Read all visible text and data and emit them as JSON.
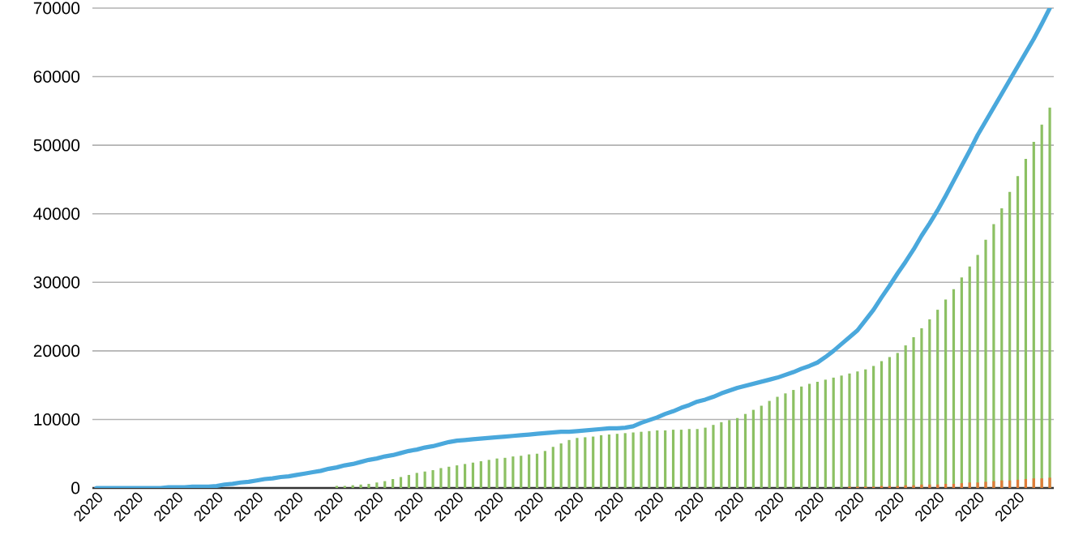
{
  "chart_data": {
    "type": "bar",
    "categories": [
      "2020",
      null,
      null,
      null,
      null,
      "2020",
      null,
      null,
      null,
      null,
      "2020",
      null,
      null,
      null,
      null,
      "2020",
      null,
      null,
      null,
      null,
      "2020",
      null,
      null,
      null,
      null,
      "2020",
      null,
      null,
      null,
      null,
      "2020",
      null,
      null,
      null,
      null,
      "2020",
      null,
      null,
      null,
      null,
      "2020",
      null,
      null,
      null,
      null,
      "2020",
      null,
      null,
      null,
      null,
      "2020",
      null,
      null,
      null,
      null,
      "2020",
      null,
      null,
      null,
      null,
      "2020",
      null,
      null,
      null,
      null,
      "2020",
      null,
      null,
      null,
      null,
      "2020",
      null,
      null,
      null,
      null,
      "2020",
      null,
      null,
      null,
      null,
      "2020",
      null,
      null,
      null,
      null,
      "2020",
      null,
      null,
      null,
      null,
      "2020",
      null,
      null,
      null,
      null,
      "2020",
      null,
      null,
      null,
      null,
      "2020",
      null,
      null,
      null,
      null,
      "2020",
      null,
      null,
      null,
      null,
      "2020",
      null,
      null,
      null,
      null,
      "2020",
      null,
      null,
      null,
      null
    ],
    "series": [
      {
        "color": "#8cc063",
        "values": [
          null,
          null,
          null,
          null,
          null,
          null,
          null,
          null,
          null,
          null,
          null,
          null,
          null,
          null,
          null,
          null,
          null,
          null,
          null,
          null,
          null,
          null,
          null,
          null,
          null,
          null,
          null,
          null,
          null,
          null,
          300,
          300,
          400,
          500,
          600,
          800,
          1000,
          1300,
          1600,
          1900,
          2200,
          2400,
          2600,
          2900,
          3100,
          3300,
          3500,
          3700,
          3900,
          4100,
          4300,
          4400,
          4600,
          4700,
          4900,
          5000,
          5400,
          6000,
          6500,
          7000,
          7300,
          7400,
          7500,
          7700,
          7800,
          7900,
          8000,
          8100,
          8200,
          8300,
          8400,
          8400,
          8500,
          8500,
          8600,
          8600,
          8800,
          9200,
          9600,
          9900,
          10200,
          10800,
          11400,
          12000,
          12700,
          13300,
          13800,
          14300,
          14800,
          15200,
          15500,
          15800,
          16100,
          16400,
          16700,
          17000,
          17300,
          17800,
          18500,
          19100,
          19700,
          20800,
          22000,
          23300,
          24600,
          26000,
          27500,
          29000,
          30700,
          32300,
          34000,
          36200,
          38500,
          40800,
          43200,
          45500,
          48000,
          50500,
          53000,
          55500
        ]
      },
      {
        "color": "#e07b39",
        "values": [
          null,
          null,
          null,
          null,
          null,
          null,
          null,
          null,
          null,
          null,
          null,
          null,
          null,
          null,
          null,
          null,
          null,
          null,
          null,
          null,
          null,
          null,
          null,
          null,
          null,
          null,
          null,
          null,
          null,
          null,
          null,
          null,
          null,
          null,
          null,
          null,
          null,
          null,
          null,
          null,
          null,
          null,
          null,
          null,
          null,
          null,
          null,
          null,
          null,
          null,
          null,
          null,
          null,
          null,
          null,
          null,
          null,
          null,
          null,
          null,
          null,
          null,
          null,
          null,
          null,
          null,
          null,
          null,
          null,
          null,
          null,
          null,
          null,
          null,
          null,
          null,
          null,
          null,
          null,
          null,
          null,
          null,
          null,
          null,
          null,
          null,
          null,
          null,
          null,
          null,
          null,
          null,
          null,
          null,
          200,
          200,
          200,
          200,
          300,
          300,
          300,
          400,
          400,
          500,
          500,
          500,
          600,
          600,
          700,
          800,
          800,
          900,
          1000,
          1100,
          1100,
          1200,
          1300,
          1400,
          1400,
          1500
        ]
      },
      {
        "type": "line",
        "color": "#4aa8dc",
        "values": [
          0,
          0,
          0,
          0,
          0,
          0,
          0,
          0,
          0,
          100,
          100,
          100,
          200,
          200,
          200,
          300,
          500,
          600,
          800,
          900,
          1100,
          1300,
          1400,
          1600,
          1700,
          1900,
          2100,
          2300,
          2500,
          2800,
          3000,
          3300,
          3500,
          3800,
          4100,
          4300,
          4600,
          4800,
          5100,
          5400,
          5600,
          5900,
          6100,
          6400,
          6700,
          6900,
          7000,
          7100,
          7200,
          7300,
          7400,
          7500,
          7600,
          7700,
          7800,
          7900,
          8000,
          8100,
          8200,
          8200,
          8300,
          8400,
          8500,
          8600,
          8700,
          8700,
          8800,
          9000,
          9500,
          9900,
          10300,
          10800,
          11200,
          11700,
          12100,
          12600,
          12900,
          13300,
          13800,
          14200,
          14600,
          14900,
          15200,
          15500,
          15800,
          16100,
          16500,
          16900,
          17400,
          17800,
          18300,
          19100,
          20000,
          21000,
          22000,
          23000,
          24500,
          26000,
          27800,
          29500,
          31300,
          33000,
          34800,
          36800,
          38600,
          40500,
          42600,
          44800,
          47000,
          49200,
          51500,
          53500,
          55500,
          57500,
          59500,
          61500,
          63500,
          65500,
          67700,
          70000
        ]
      }
    ],
    "ylim": [
      0,
      70000
    ],
    "yticks": [
      0,
      10000,
      20000,
      30000,
      40000,
      50000,
      60000,
      70000
    ],
    "grid": "y"
  }
}
